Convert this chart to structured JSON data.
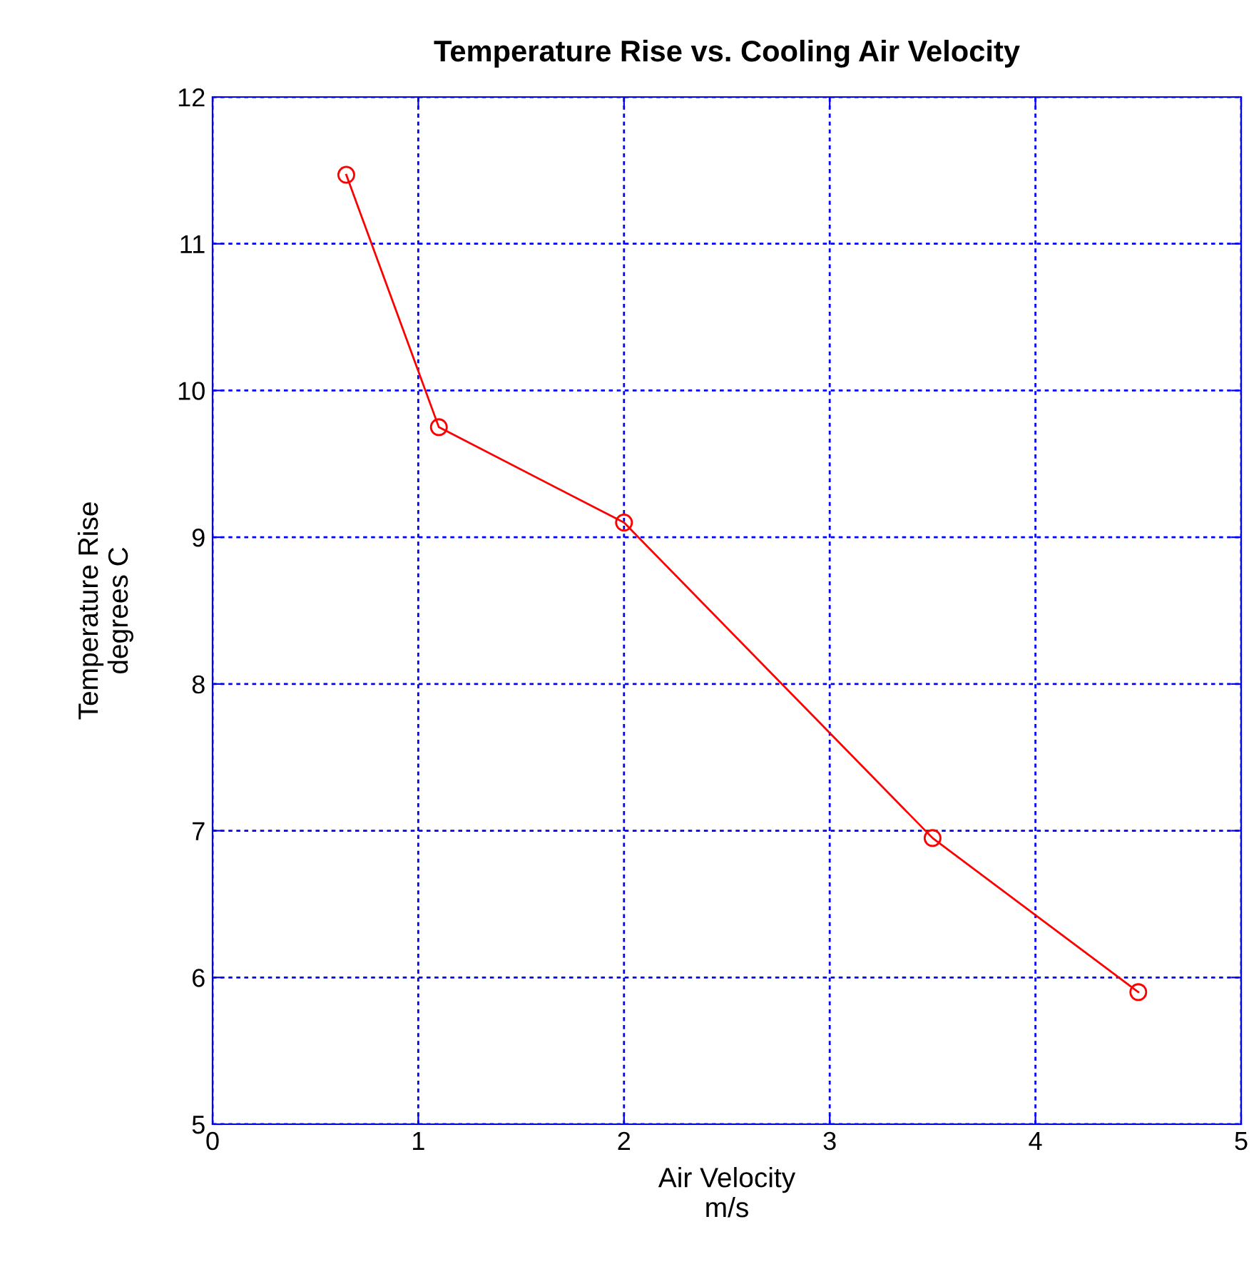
{
  "chart_data": {
    "type": "line",
    "title": "Temperature Rise vs. Cooling Air Velocity",
    "xlabel": "Air Velocity\nm/s",
    "ylabel": "Temperature Rise\ndegrees C",
    "series": [
      {
        "color": "#ff0000",
        "x": [
          0.65,
          1.1,
          2.0,
          3.5,
          4.5
        ],
        "values": [
          11.47,
          9.75,
          9.1,
          6.95,
          5.9
        ]
      }
    ],
    "xlim": [
      0,
      5
    ],
    "xticks": [
      0,
      1,
      2,
      3,
      4,
      5
    ],
    "ylim": [
      5,
      12
    ],
    "yticks": [
      5,
      6,
      7,
      8,
      9,
      10,
      11,
      12
    ],
    "grid": true,
    "marker": "circle",
    "line_style": "solid"
  }
}
